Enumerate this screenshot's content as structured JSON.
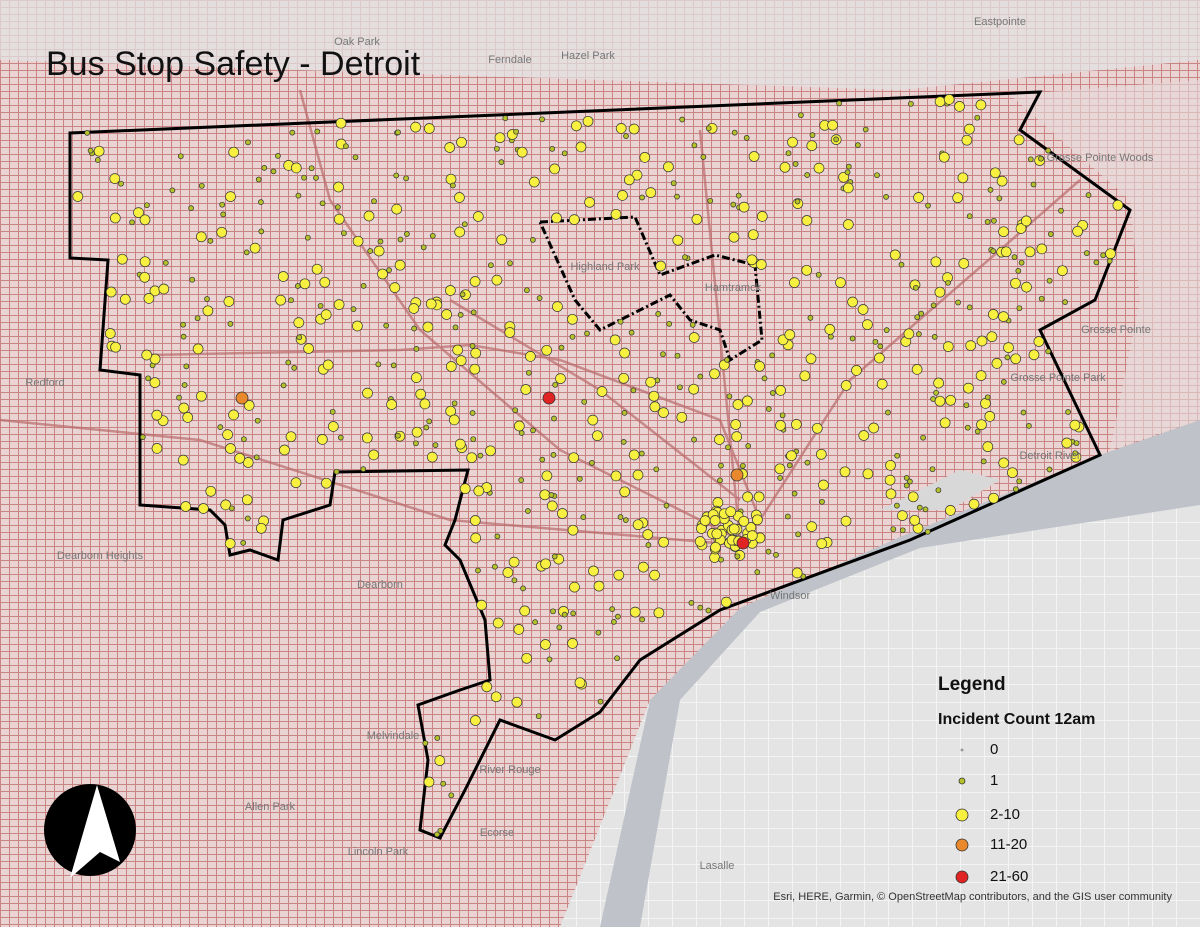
{
  "title": "Bus Stop Safety - Detroit",
  "places": [
    "Eastpointe",
    "Oak Park",
    "Ferndale",
    "Hazel Park",
    "Highland Park",
    "Hamtramck",
    "Redford",
    "Dearborn Heights",
    "Dearborn",
    "Windsor",
    "Detroit River",
    "Grosse Pointe",
    "Grosse Pointe Park",
    "Grosse Pointe Woods",
    "Melvindale",
    "River Rouge",
    "Allen Park",
    "Ecorse",
    "Lincoln Park",
    "Lasalle"
  ],
  "legend": {
    "title": "Legend",
    "subtitle": "Incident Count 12am",
    "items": [
      {
        "label": "0",
        "color": "#9a9a9a"
      },
      {
        "label": "1",
        "color": "#b5c22a"
      },
      {
        "label": "2-10",
        "color": "#f7f040"
      },
      {
        "label": "11-20",
        "color": "#e8892d"
      },
      {
        "label": "21-60",
        "color": "#e02424"
      }
    ]
  },
  "attribution": "Esri, HERE, Garmin, © OpenStreetMap contributors, and the GIS user community"
}
